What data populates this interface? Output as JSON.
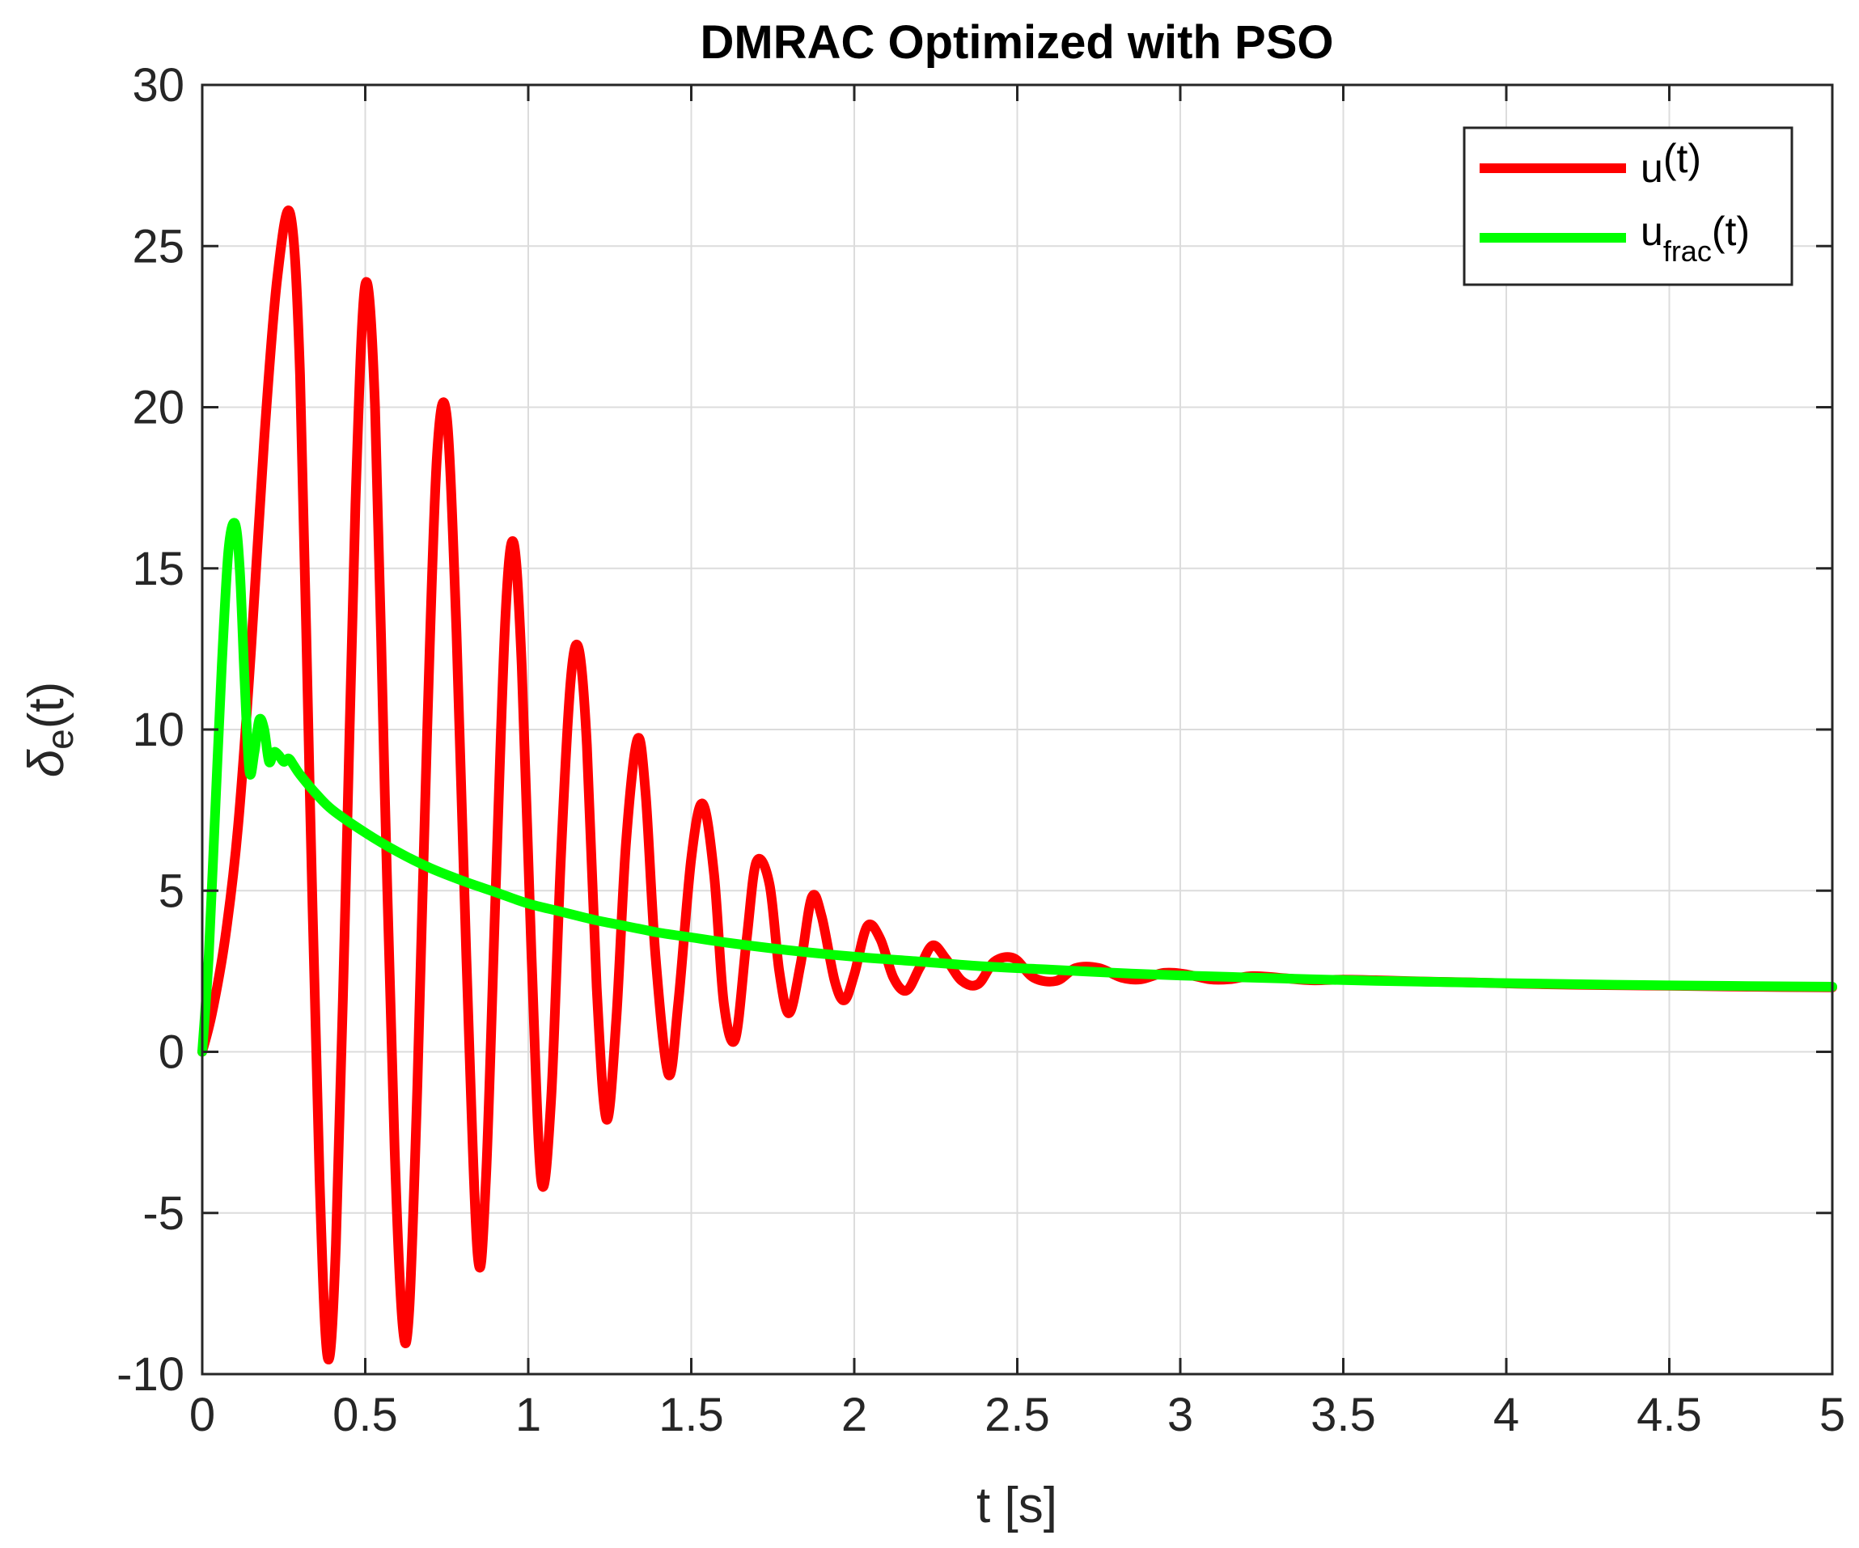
{
  "chart_data": {
    "type": "line",
    "title": "DMRAC Optimized with PSO",
    "xlabel": "t [s]",
    "ylabel": {
      "base": "δ",
      "sub": "e",
      "tail": "(t)"
    },
    "xlim": [
      0,
      5
    ],
    "ylim": [
      -10,
      30
    ],
    "grid": true,
    "box": true,
    "x_ticks": [
      0,
      0.5,
      1,
      1.5,
      2,
      2.5,
      3,
      3.5,
      4,
      4.5,
      5
    ],
    "x_tick_labels": [
      "0",
      "0.5",
      "1",
      "1.5",
      "2",
      "2.5",
      "3",
      "3.5",
      "4",
      "4.5",
      "5"
    ],
    "y_ticks": [
      -10,
      -5,
      0,
      5,
      10,
      15,
      20,
      25,
      30
    ],
    "y_tick_labels": [
      "-10",
      "-5",
      "0",
      "5",
      "10",
      "15",
      "20",
      "25",
      "30"
    ],
    "legend": {
      "position": "top-right",
      "entries": [
        {
          "base": "u",
          "sub": "",
          "tail": "(t)"
        },
        {
          "base": "u",
          "sub": "frac",
          "tail": "(t)"
        }
      ]
    },
    "series": [
      {
        "name": "u(t)",
        "color": "#ff0000",
        "x": [
          0,
          0.03,
          0.07,
          0.11,
          0.15,
          0.19,
          0.23,
          0.27,
          0.3,
          0.33,
          0.36,
          0.385,
          0.41,
          0.44,
          0.47,
          0.5,
          0.53,
          0.56,
          0.59,
          0.615,
          0.635,
          0.66,
          0.69,
          0.72,
          0.75,
          0.78,
          0.81,
          0.845,
          0.87,
          0.9,
          0.93,
          0.955,
          0.98,
          1.01,
          1.04,
          1.07,
          1.1,
          1.13,
          1.155,
          1.18,
          1.21,
          1.24,
          1.27,
          1.3,
          1.335,
          1.36,
          1.39,
          1.43,
          1.46,
          1.5,
          1.535,
          1.57,
          1.6,
          1.635,
          1.67,
          1.7,
          1.74,
          1.77,
          1.8,
          1.835,
          1.87,
          1.9,
          1.94,
          1.97,
          2.0,
          2.04,
          2.08,
          2.12,
          2.16,
          2.2,
          2.24,
          2.28,
          2.33,
          2.38,
          2.43,
          2.49,
          2.55,
          2.62,
          2.68,
          2.75,
          2.82,
          2.88,
          2.95,
          3.02,
          3.09,
          3.15,
          3.22,
          3.3,
          3.4,
          3.5,
          3.6,
          3.75,
          3.9,
          4.1,
          4.3,
          4.5,
          4.75,
          5.0
        ],
        "y": [
          0,
          1.2,
          3.5,
          7.0,
          12.5,
          19.0,
          24.0,
          26.0,
          21.0,
          8.0,
          -4.0,
          -9.5,
          -6.0,
          5.0,
          17.0,
          23.8,
          20.0,
          8.0,
          -3.0,
          -8.5,
          -8.0,
          -1.0,
          10.0,
          18.5,
          19.7,
          13.0,
          3.0,
          -6.3,
          -4.0,
          5.0,
          13.5,
          15.8,
          12.0,
          3.0,
          -4.0,
          -1.5,
          6.0,
          11.5,
          12.5,
          9.5,
          2.0,
          -2.1,
          1.0,
          6.5,
          9.7,
          8.0,
          3.0,
          -0.7,
          1.5,
          6.0,
          7.7,
          5.5,
          1.5,
          0.4,
          3.5,
          5.9,
          5.2,
          2.5,
          1.2,
          2.7,
          4.8,
          4.2,
          2.2,
          1.6,
          2.4,
          3.9,
          3.5,
          2.3,
          1.9,
          2.6,
          3.3,
          2.9,
          2.2,
          2.1,
          2.8,
          2.9,
          2.3,
          2.2,
          2.6,
          2.6,
          2.3,
          2.25,
          2.45,
          2.4,
          2.25,
          2.25,
          2.35,
          2.3,
          2.22,
          2.24,
          2.22,
          2.18,
          2.15,
          2.1,
          2.07,
          2.05,
          2.02,
          2.0
        ]
      },
      {
        "name": "u_frac(t)",
        "color": "#00ff00",
        "x": [
          0,
          0.02,
          0.04,
          0.06,
          0.08,
          0.1,
          0.115,
          0.13,
          0.145,
          0.16,
          0.175,
          0.19,
          0.205,
          0.22,
          0.235,
          0.25,
          0.265,
          0.28,
          0.3,
          0.35,
          0.4,
          0.5,
          0.6,
          0.7,
          0.8,
          0.9,
          1.0,
          1.1,
          1.2,
          1.3,
          1.4,
          1.5,
          1.6,
          1.8,
          2.0,
          2.2,
          2.4,
          2.6,
          2.8,
          3.0,
          3.3,
          3.6,
          4.0,
          4.5,
          5.0
        ],
        "y": [
          0,
          3.0,
          7.5,
          12.0,
          15.5,
          16.4,
          15.0,
          11.5,
          8.7,
          9.3,
          10.3,
          10.0,
          9.0,
          9.3,
          9.2,
          9.0,
          9.1,
          8.9,
          8.6,
          8.0,
          7.5,
          6.8,
          6.2,
          5.7,
          5.3,
          4.95,
          4.6,
          4.35,
          4.1,
          3.9,
          3.7,
          3.55,
          3.4,
          3.15,
          2.95,
          2.8,
          2.65,
          2.55,
          2.45,
          2.37,
          2.28,
          2.2,
          2.13,
          2.06,
          2.02
        ]
      }
    ]
  }
}
